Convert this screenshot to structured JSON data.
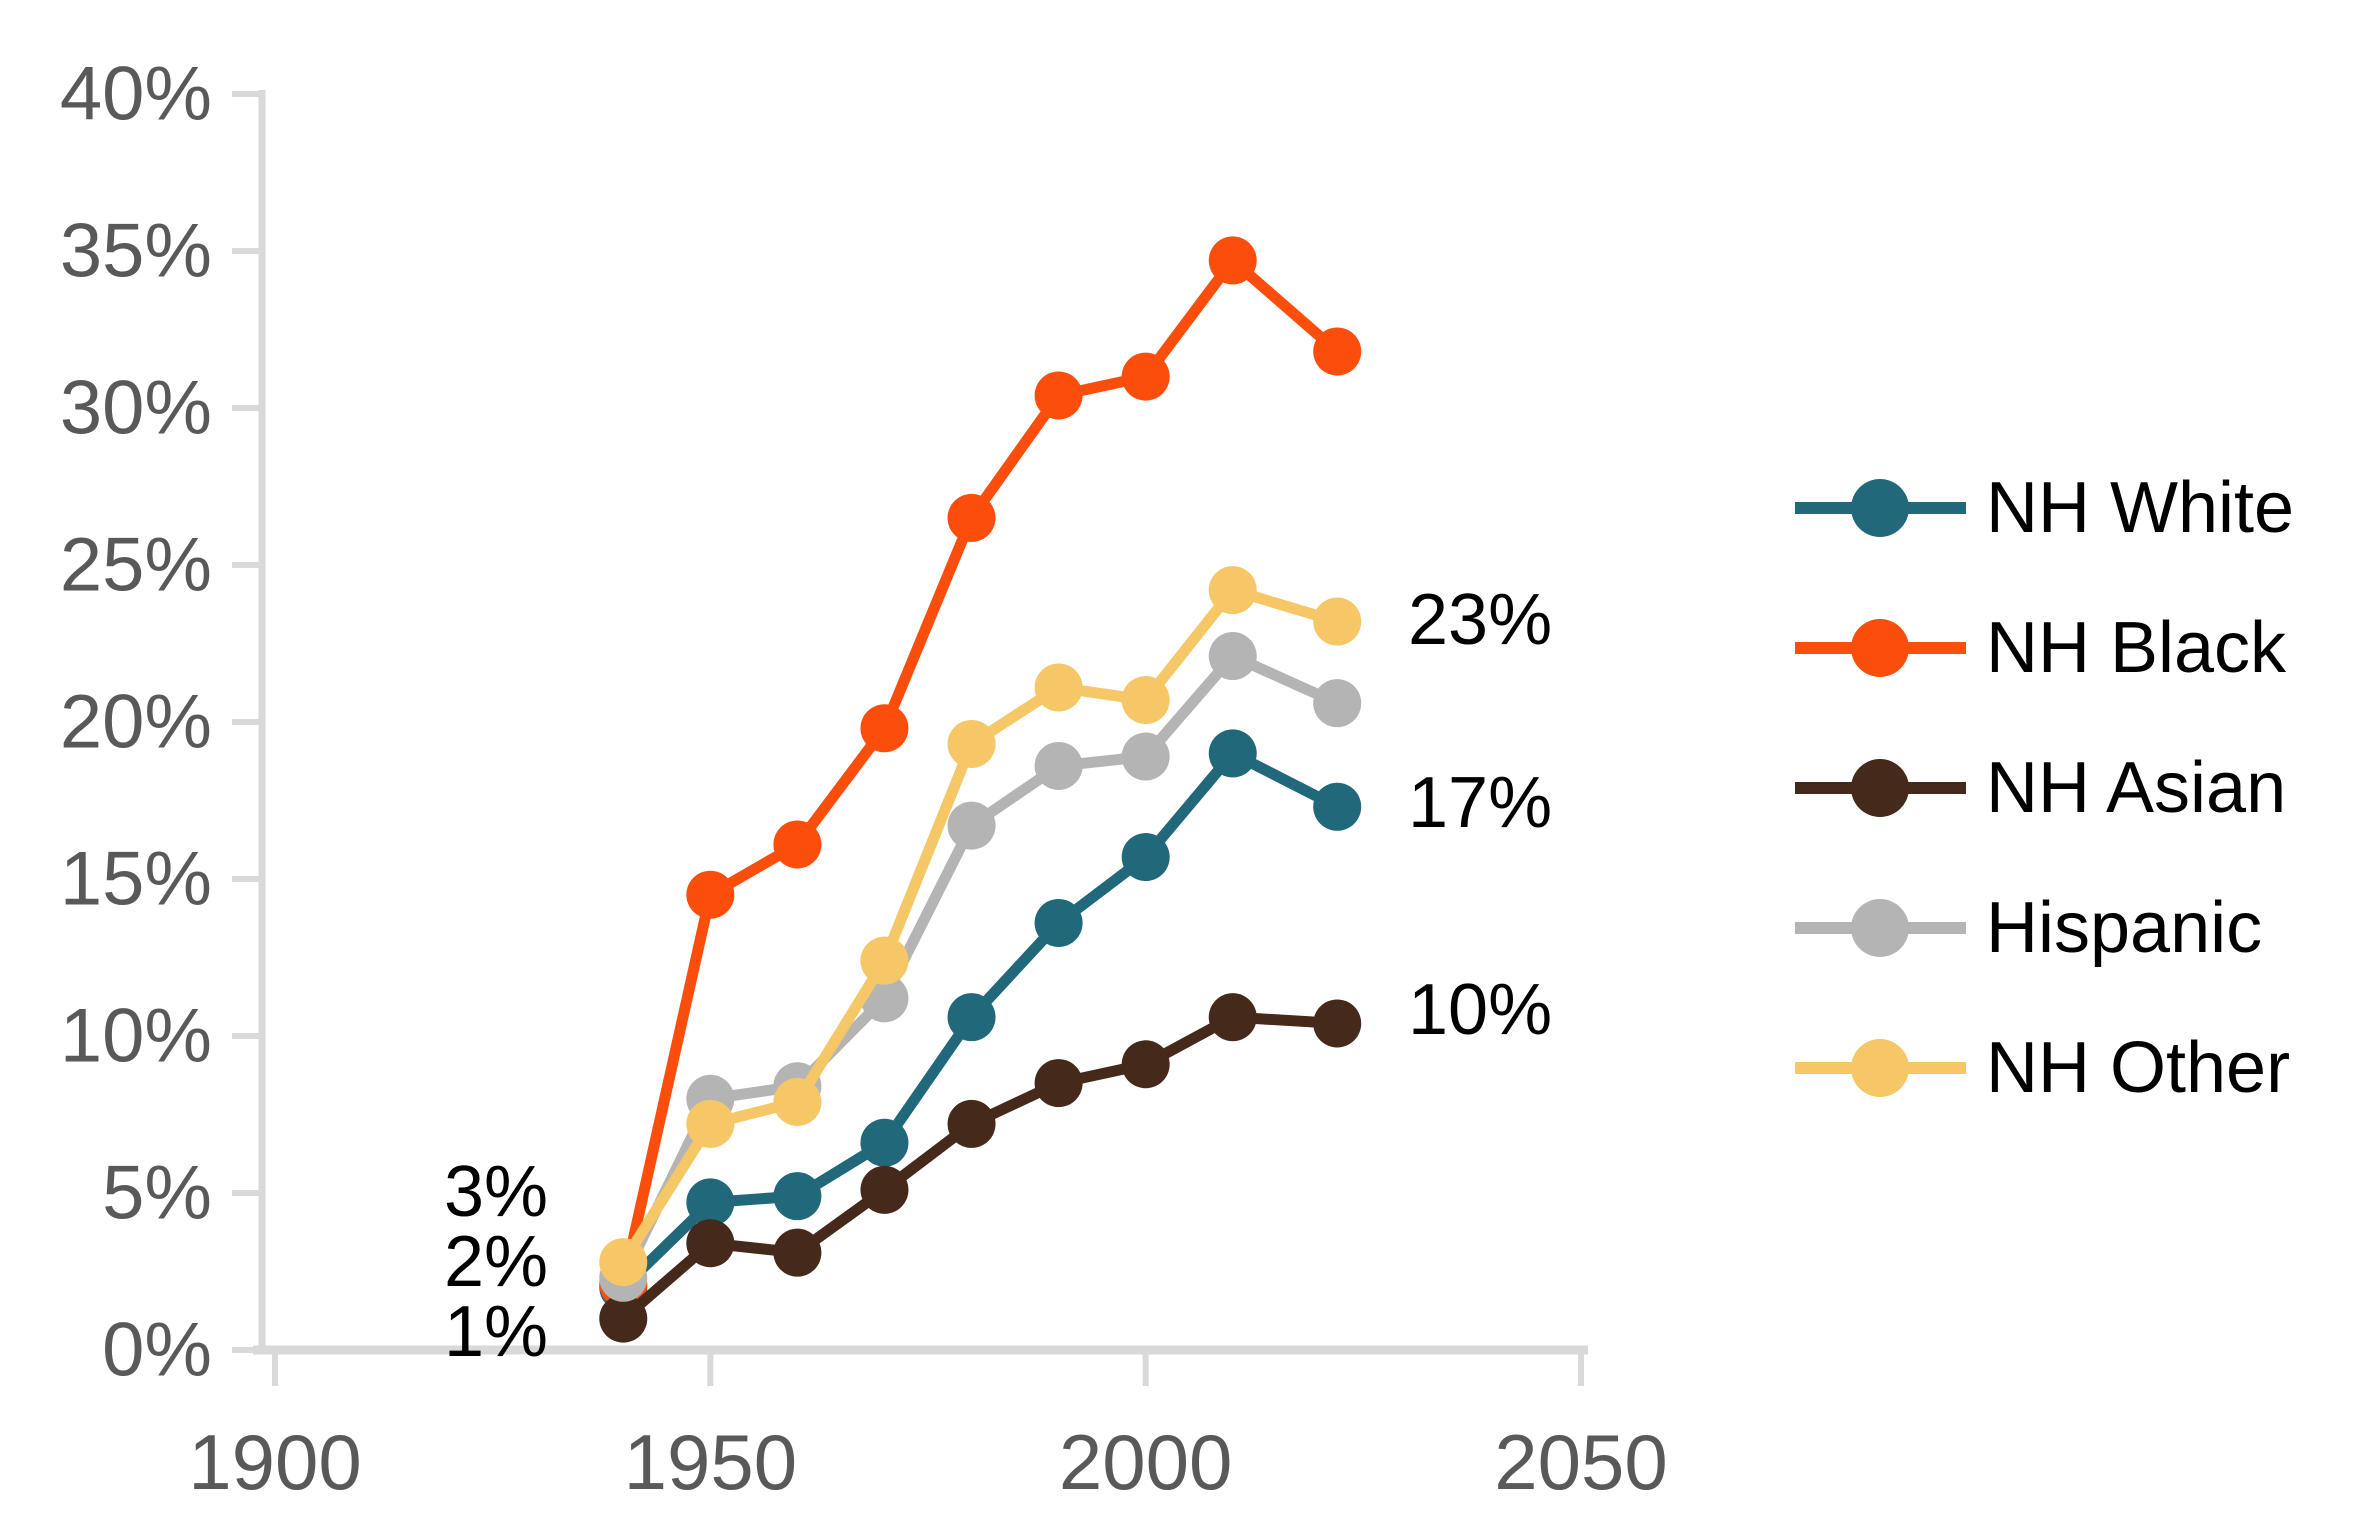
{
  "chart_data": {
    "type": "line",
    "title": "",
    "xlabel": "",
    "ylabel": "",
    "x": [
      1940,
      1950,
      1960,
      1970,
      1980,
      1990,
      2000,
      2010,
      2022
    ],
    "series": [
      {
        "name": "NH White",
        "color": "#20687A",
        "values": [
          2.0,
          4.7,
          4.9,
          6.6,
          10.6,
          13.6,
          15.7,
          19.0,
          17.3
        ]
      },
      {
        "name": "NH Black",
        "color": "#FB4E0D",
        "values": [
          2.1,
          14.5,
          16.1,
          19.8,
          26.5,
          30.4,
          31.0,
          34.7,
          31.8
        ]
      },
      {
        "name": "NH Asian",
        "color": "#45291B",
        "values": [
          1.0,
          3.4,
          3.1,
          5.1,
          7.2,
          8.5,
          9.1,
          10.6,
          10.4
        ]
      },
      {
        "name": "Hispanic",
        "color": "#B4B4B4",
        "values": [
          2.3,
          8.0,
          8.4,
          11.2,
          16.7,
          18.6,
          18.9,
          22.1,
          20.6
        ]
      },
      {
        "name": "NH Other",
        "color": "#F5C767",
        "values": [
          2.8,
          7.2,
          7.9,
          12.4,
          19.3,
          21.1,
          20.7,
          24.2,
          23.2
        ]
      }
    ],
    "xlim": [
      1900,
      2050
    ],
    "ylim": [
      0,
      40
    ],
    "x_tick_labels": [
      "1900",
      "1950",
      "2000",
      "2050"
    ],
    "x_tick_values": [
      1900,
      1950,
      2000,
      2050
    ],
    "y_tick_labels": [
      "0%",
      "5%",
      "10%",
      "15%",
      "20%",
      "25%",
      "30%",
      "35%",
      "40%"
    ],
    "y_tick_values": [
      0,
      5,
      10,
      15,
      20,
      25,
      30,
      35,
      40
    ],
    "grid": false,
    "legend_position": "right",
    "legend_entries": [
      "NH White",
      "NH Black",
      "NH Asian",
      "Hispanic",
      "NH Other"
    ],
    "annotations": {
      "end_labels": [
        {
          "text": "23%",
          "series": "NH Other",
          "value": 23.2
        },
        {
          "text": "17%",
          "series": "NH White",
          "value": 17.3
        },
        {
          "text": "10%",
          "series": "NH Asian",
          "value": 10.4
        }
      ],
      "start_labels": [
        {
          "text": "3%"
        },
        {
          "text": "2%"
        },
        {
          "text": "1%"
        }
      ]
    },
    "colors": {
      "axis_line": "#D9D9D9",
      "tick_label": "#595959",
      "annotation_text": "#000000",
      "background": "#FFFFFF"
    }
  }
}
